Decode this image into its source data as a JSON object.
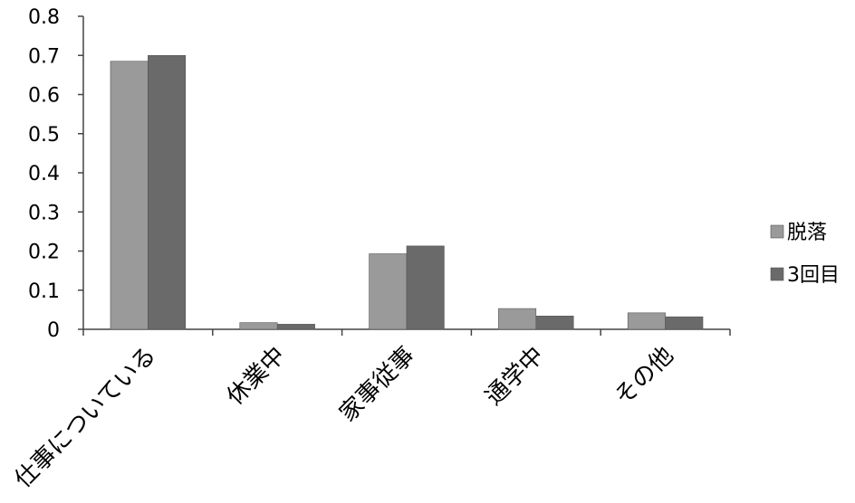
{
  "chart_data": {
    "type": "bar",
    "categories": [
      "仕事についている",
      "休業中",
      "家事従事",
      "通学中",
      "その他"
    ],
    "series": [
      {
        "name": "脱落",
        "values": [
          0.685,
          0.017,
          0.193,
          0.053,
          0.042
        ],
        "color": "#9a9a9a"
      },
      {
        "name": "3回目",
        "values": [
          0.7,
          0.013,
          0.213,
          0.034,
          0.032
        ],
        "color": "#6a6a6a"
      }
    ],
    "ylim": [
      0,
      0.8
    ],
    "yticks": [
      "0",
      "0.1",
      "0.2",
      "0.3",
      "0.4",
      "0.5",
      "0.6",
      "0.7",
      "0.8"
    ],
    "grid": false,
    "legend_position": "right",
    "title": "",
    "xlabel": "",
    "ylabel": ""
  }
}
